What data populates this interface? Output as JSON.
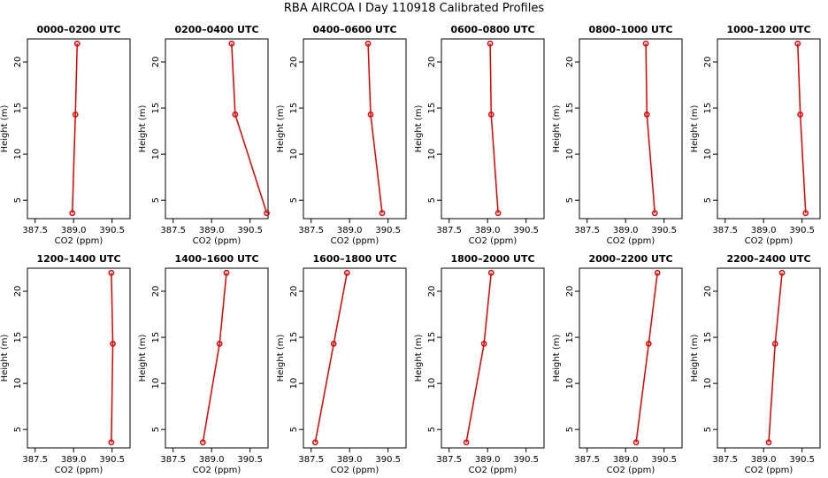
{
  "title": "RBA AIRCOA I  Day 110918  Calibrated Profiles",
  "chart_data": [
    {
      "type": "line",
      "title": "0000–0200 UTC",
      "xlabel": "CO2 (ppm)",
      "ylabel": "Height (m)",
      "xlim": [
        387.2,
        391.2
      ],
      "ylim": [
        3,
        22.5
      ],
      "xticks": [
        387.5,
        {
          "value": 389,
          "label": "389.0"
        },
        390.5
      ],
      "yticks": [
        5,
        10,
        15,
        20
      ],
      "y": [
        22,
        14.3,
        3.6
      ],
      "series": [
        {
          "color": "#e00000",
          "values": [
            389.14,
            389.07,
            388.95
          ]
        }
      ]
    },
    {
      "type": "line",
      "title": "0200–0400 UTC",
      "xlabel": "CO2 (ppm)",
      "ylabel": "Height (m)",
      "xlim": [
        387.2,
        391.2
      ],
      "ylim": [
        3,
        22.5
      ],
      "xticks": [
        387.5,
        {
          "value": 389,
          "label": "389.0"
        },
        390.5
      ],
      "yticks": [
        5,
        10,
        15,
        20
      ],
      "y": [
        22,
        14.3,
        3.6
      ],
      "series": [
        {
          "color": "#e00000",
          "values": [
            389.78,
            389.92,
            391.15
          ]
        }
      ]
    },
    {
      "type": "line",
      "title": "0400–0600 UTC",
      "xlabel": "CO2 (ppm)",
      "ylabel": "Height (m)",
      "xlim": [
        387.2,
        391.2
      ],
      "ylim": [
        3,
        22.5
      ],
      "xticks": [
        387.5,
        {
          "value": 389,
          "label": "389.0"
        },
        390.5
      ],
      "yticks": [
        5,
        10,
        15,
        20
      ],
      "y": [
        22,
        14.3,
        3.6
      ],
      "series": [
        {
          "color": "#e00000",
          "values": [
            389.72,
            389.82,
            390.27
          ]
        }
      ]
    },
    {
      "type": "line",
      "title": "0600–0800 UTC",
      "xlabel": "CO2 (ppm)",
      "ylabel": "Height (m)",
      "xlim": [
        387.2,
        391.2
      ],
      "ylim": [
        3,
        22.5
      ],
      "xticks": [
        387.5,
        {
          "value": 389,
          "label": "389.0"
        },
        390.5
      ],
      "yticks": [
        5,
        10,
        15,
        20
      ],
      "y": [
        22,
        14.3,
        3.6
      ],
      "series": [
        {
          "color": "#e00000",
          "values": [
            389.1,
            389.14,
            389.41
          ]
        }
      ]
    },
    {
      "type": "line",
      "title": "0800–1000 UTC",
      "xlabel": "CO2 (ppm)",
      "ylabel": "Height (m)",
      "xlim": [
        387.2,
        391.2
      ],
      "ylim": [
        3,
        22.5
      ],
      "xticks": [
        387.5,
        {
          "value": 389,
          "label": "389.0"
        },
        390.5
      ],
      "yticks": [
        5,
        10,
        15,
        20
      ],
      "y": [
        22,
        14.3,
        3.6
      ],
      "series": [
        {
          "color": "#e00000",
          "values": [
            389.79,
            389.83,
            390.14
          ]
        }
      ]
    },
    {
      "type": "line",
      "title": "1000–1200 UTC",
      "xlabel": "CO2 (ppm)",
      "ylabel": "Height (m)",
      "xlim": [
        387.2,
        391.2
      ],
      "ylim": [
        3,
        22.5
      ],
      "xticks": [
        387.5,
        {
          "value": 389,
          "label": "389.0"
        },
        390.5
      ],
      "yticks": [
        5,
        10,
        15,
        20
      ],
      "y": [
        22,
        14.3,
        3.6
      ],
      "series": [
        {
          "color": "#e00000",
          "values": [
            390.33,
            390.43,
            390.64
          ]
        }
      ]
    },
    {
      "type": "line",
      "title": "1200–1400 UTC",
      "xlabel": "CO2 (ppm)",
      "ylabel": "Height (m)",
      "xlim": [
        387.2,
        391.2
      ],
      "ylim": [
        3,
        22.5
      ],
      "xticks": [
        387.5,
        {
          "value": 389,
          "label": "389.0"
        },
        390.5
      ],
      "yticks": [
        5,
        10,
        15,
        20
      ],
      "y": [
        22,
        14.3,
        3.6
      ],
      "series": [
        {
          "color": "#e00000",
          "values": [
            390.47,
            390.53,
            390.47
          ]
        }
      ]
    },
    {
      "type": "line",
      "title": "1400–1600 UTC",
      "xlabel": "CO2 (ppm)",
      "ylabel": "Height (m)",
      "xlim": [
        387.2,
        391.2
      ],
      "ylim": [
        3,
        22.5
      ],
      "xticks": [
        387.5,
        {
          "value": 389,
          "label": "389.0"
        },
        390.5
      ],
      "yticks": [
        5,
        10,
        15,
        20
      ],
      "y": [
        22,
        14.3,
        3.6
      ],
      "series": [
        {
          "color": "#e00000",
          "values": [
            389.58,
            389.31,
            388.66
          ]
        }
      ]
    },
    {
      "type": "line",
      "title": "1600–1800 UTC",
      "xlabel": "CO2 (ppm)",
      "ylabel": "Height (m)",
      "xlim": [
        387.2,
        391.2
      ],
      "ylim": [
        3,
        22.5
      ],
      "xticks": [
        387.5,
        {
          "value": 389,
          "label": "389.0"
        },
        390.5
      ],
      "yticks": [
        5,
        10,
        15,
        20
      ],
      "y": [
        22,
        14.3,
        3.6
      ],
      "series": [
        {
          "color": "#e00000",
          "values": [
            388.9,
            388.38,
            387.66
          ]
        }
      ]
    },
    {
      "type": "line",
      "title": "1800–2000 UTC",
      "xlabel": "CO2 (ppm)",
      "ylabel": "Height (m)",
      "xlim": [
        387.2,
        391.2
      ],
      "ylim": [
        3,
        22.5
      ],
      "xticks": [
        387.5,
        {
          "value": 389,
          "label": "389.0"
        },
        390.5
      ],
      "yticks": [
        5,
        10,
        15,
        20
      ],
      "y": [
        22,
        14.3,
        3.6
      ],
      "series": [
        {
          "color": "#e00000",
          "values": [
            389.14,
            388.86,
            388.17
          ]
        }
      ]
    },
    {
      "type": "line",
      "title": "2000–2200 UTC",
      "xlabel": "CO2 (ppm)",
      "ylabel": "Height (m)",
      "xlim": [
        387.2,
        391.2
      ],
      "ylim": [
        3,
        22.5
      ],
      "xticks": [
        387.5,
        {
          "value": 389,
          "label": "389.0"
        },
        390.5
      ],
      "yticks": [
        5,
        10,
        15,
        20
      ],
      "y": [
        22,
        14.3,
        3.6
      ],
      "series": [
        {
          "color": "#e00000",
          "values": [
            390.24,
            389.9,
            389.41
          ]
        }
      ]
    },
    {
      "type": "line",
      "title": "2200–2400 UTC",
      "xlabel": "CO2 (ppm)",
      "ylabel": "Height (m)",
      "xlim": [
        387.2,
        391.2
      ],
      "ylim": [
        3,
        22.5
      ],
      "xticks": [
        387.5,
        {
          "value": 389,
          "label": "389.0"
        },
        390.5
      ],
      "yticks": [
        5,
        10,
        15,
        20
      ],
      "y": [
        22,
        14.3,
        3.6
      ],
      "series": [
        {
          "color": "#e00000",
          "values": [
            389.72,
            389.45,
            389.2
          ]
        }
      ]
    }
  ]
}
